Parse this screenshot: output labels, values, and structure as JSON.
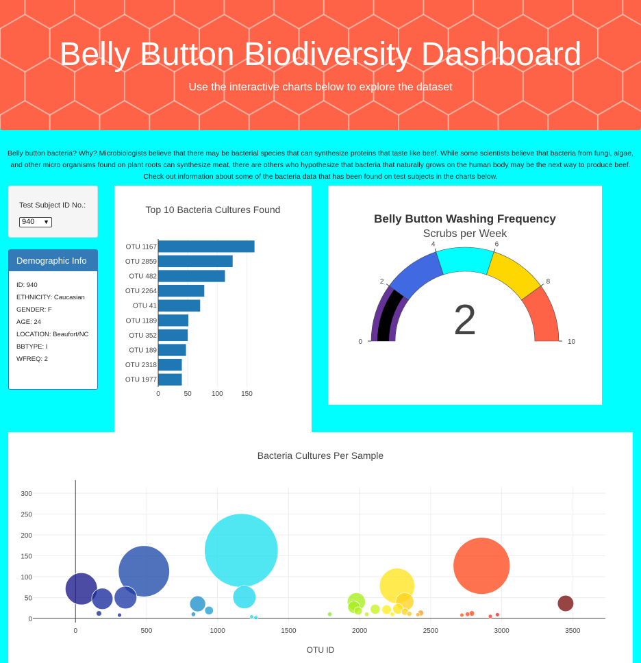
{
  "header": {
    "title": "Belly Button Biodiversity Dashboard",
    "subtitle": "Use the interactive charts below to explore the dataset"
  },
  "intro_text": "Belly button bacteria? Why? Microbiologists believe that there may be bacterial species that can synthesize proteins that taste like beef. While some scientists believe that bacteria from fungi, algae, and other micro organisms found on plant roots can synthesize meat, there are others who hypothesize that bacteria that naturally grows on the human body may be the next way to produce beef. Check out information about some of the bacteria data that has been found on test subjects in the charts below.",
  "selector": {
    "label": "Test Subject ID No.:",
    "selected": "940"
  },
  "demographics": {
    "heading": "Demographic Info",
    "items": [
      "ID: 940",
      "ETHNICITY: Caucasian",
      "GENDER: F",
      "AGE: 24",
      "LOCATION: Beaufort/NC",
      "BBTYPE: I",
      "WFREQ: 2"
    ]
  },
  "colors": {
    "header_bg": "#ff6347",
    "page_bg": "#00ffff",
    "bar": "#1f77b4",
    "panel_head": "#337ab7"
  },
  "chart_data": [
    {
      "type": "bar",
      "orientation": "horizontal",
      "title": "Top 10 Bacteria Cultures Found",
      "categories": [
        "OTU 1167",
        "OTU 2859",
        "OTU 482",
        "OTU 2264",
        "OTU 41",
        "OTU 1189",
        "OTU 352",
        "OTU 189",
        "OTU 2318",
        "OTU 1977"
      ],
      "values": [
        163,
        126,
        113,
        78,
        71,
        51,
        50,
        47,
        40,
        40
      ],
      "xlim": [
        0,
        175
      ],
      "xticks": [
        0,
        50,
        100,
        150
      ],
      "grid": true
    },
    {
      "type": "gauge",
      "title": "Belly Button Washing Frequency",
      "subtitle": "Scrubs per Week",
      "value": 2,
      "range": [
        0,
        10
      ],
      "ticks": [
        0,
        2,
        4,
        6,
        8,
        10
      ],
      "bands": [
        {
          "from": 0,
          "to": 2,
          "color": "#663399"
        },
        {
          "from": 2,
          "to": 4,
          "color": "#4169e1"
        },
        {
          "from": 4,
          "to": 6,
          "color": "#00ffff"
        },
        {
          "from": 6,
          "to": 8,
          "color": "#ffd700"
        },
        {
          "from": 8,
          "to": 10,
          "color": "#ff6347"
        }
      ],
      "bar_color": "#000000"
    },
    {
      "type": "scatter",
      "subtype": "bubble",
      "title": "Bacteria Cultures Per Sample",
      "xlabel": "OTU ID",
      "ylabel": "",
      "xlim": [
        -300,
        3730
      ],
      "ylim": [
        -10,
        315
      ],
      "xticks": [
        0,
        500,
        1000,
        1500,
        2000,
        2500,
        3000,
        3500
      ],
      "yticks": [
        0,
        50,
        100,
        150,
        200,
        250,
        300
      ],
      "grid": true,
      "points": [
        {
          "x": 41,
          "y": 71,
          "color": "#1a1a8c"
        },
        {
          "x": 189,
          "y": 47,
          "color": "#1a2a9c"
        },
        {
          "x": 165,
          "y": 12,
          "color": "#1a2a9c"
        },
        {
          "x": 310,
          "y": 8,
          "color": "#1a2a9c"
        },
        {
          "x": 352,
          "y": 50,
          "color": "#1f3aa6"
        },
        {
          "x": 482,
          "y": 113,
          "color": "#1f4aab"
        },
        {
          "x": 860,
          "y": 35,
          "color": "#1f8fcc"
        },
        {
          "x": 940,
          "y": 19,
          "color": "#1f9fd4"
        },
        {
          "x": 830,
          "y": 10,
          "color": "#1f8fcc"
        },
        {
          "x": 1167,
          "y": 163,
          "color": "#1fe0f0"
        },
        {
          "x": 1189,
          "y": 51,
          "color": "#1fd8f0"
        },
        {
          "x": 1240,
          "y": 4,
          "color": "#1fd8f0"
        },
        {
          "x": 1270,
          "y": 2,
          "color": "#1fd8f0"
        },
        {
          "x": 1790,
          "y": 10,
          "color": "#88ee33"
        },
        {
          "x": 1977,
          "y": 40,
          "color": "#a6ee1f"
        },
        {
          "x": 1960,
          "y": 27,
          "color": "#a6ee1f"
        },
        {
          "x": 1990,
          "y": 18,
          "color": "#b5f01f"
        },
        {
          "x": 2050,
          "y": 10,
          "color": "#c2f21f"
        },
        {
          "x": 2110,
          "y": 22,
          "color": "#c8f21f"
        },
        {
          "x": 2190,
          "y": 21,
          "color": "#ffee1f"
        },
        {
          "x": 2230,
          "y": 10,
          "color": "#ffee1f"
        },
        {
          "x": 2264,
          "y": 78,
          "color": "#ffe41f"
        },
        {
          "x": 2270,
          "y": 23,
          "color": "#ffe41f"
        },
        {
          "x": 2318,
          "y": 40,
          "color": "#ffd21f"
        },
        {
          "x": 2320,
          "y": 16,
          "color": "#ffd21f"
        },
        {
          "x": 2350,
          "y": 11,
          "color": "#ffc81f"
        },
        {
          "x": 2410,
          "y": 9,
          "color": "#ffaa1f"
        },
        {
          "x": 2430,
          "y": 13,
          "color": "#ff9f1f"
        },
        {
          "x": 2720,
          "y": 8,
          "color": "#ff5a1f"
        },
        {
          "x": 2760,
          "y": 10,
          "color": "#ff4a1f"
        },
        {
          "x": 2790,
          "y": 12,
          "color": "#ff4a1f"
        },
        {
          "x": 2859,
          "y": 126,
          "color": "#ff4a1f"
        },
        {
          "x": 2920,
          "y": 5,
          "color": "#ff3a1f"
        },
        {
          "x": 2970,
          "y": 9,
          "color": "#ee2a1f"
        },
        {
          "x": 3450,
          "y": 36,
          "color": "#7a0f0f"
        }
      ]
    }
  ]
}
